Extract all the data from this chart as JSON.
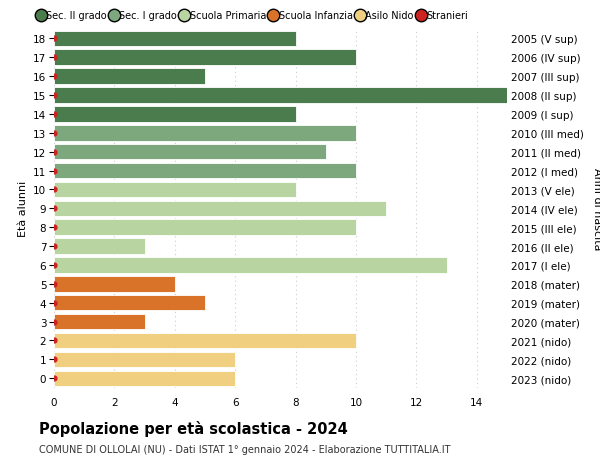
{
  "ages": [
    18,
    17,
    16,
    15,
    14,
    13,
    12,
    11,
    10,
    9,
    8,
    7,
    6,
    5,
    4,
    3,
    2,
    1,
    0
  ],
  "years": [
    "2005 (V sup)",
    "2006 (IV sup)",
    "2007 (III sup)",
    "2008 (II sup)",
    "2009 (I sup)",
    "2010 (III med)",
    "2011 (II med)",
    "2012 (I med)",
    "2013 (V ele)",
    "2014 (IV ele)",
    "2015 (III ele)",
    "2016 (II ele)",
    "2017 (I ele)",
    "2018 (mater)",
    "2019 (mater)",
    "2020 (mater)",
    "2021 (nido)",
    "2022 (nido)",
    "2023 (nido)"
  ],
  "values": [
    8,
    10,
    5,
    15,
    8,
    10,
    9,
    10,
    8,
    11,
    10,
    3,
    13,
    4,
    5,
    3,
    10,
    6,
    6
  ],
  "bar_colors": [
    "#4a7c4e",
    "#4a7c4e",
    "#4a7c4e",
    "#4a7c4e",
    "#4a7c4e",
    "#7da87d",
    "#7da87d",
    "#7da87d",
    "#b8d4a0",
    "#b8d4a0",
    "#b8d4a0",
    "#b8d4a0",
    "#b8d4a0",
    "#d9732a",
    "#d9732a",
    "#d9732a",
    "#f0d080",
    "#f0d080",
    "#f0d080"
  ],
  "dot_color": "#cc2222",
  "legend_items": [
    "Sec. II grado",
    "Sec. I grado",
    "Scuola Primaria",
    "Scuola Infanzia",
    "Asilo Nido",
    "Stranieri"
  ],
  "legend_colors": [
    "#4a7c4e",
    "#7da87d",
    "#b8d4a0",
    "#d9732a",
    "#f0d080",
    "#cc2222"
  ],
  "title": "Popolazione per età scolastica - 2024",
  "subtitle": "COMUNE DI OLLOLAI (NU) - Dati ISTAT 1° gennaio 2024 - Elaborazione TUTTITALIA.IT",
  "ylabel_left": "Età alunni",
  "ylabel_right": "Anni di nascita",
  "xlim": [
    0,
    15
  ],
  "background_color": "#ffffff",
  "bar_height": 0.82,
  "grid_color": "#cccccc",
  "xticks": [
    0,
    2,
    4,
    6,
    8,
    10,
    12,
    14
  ]
}
